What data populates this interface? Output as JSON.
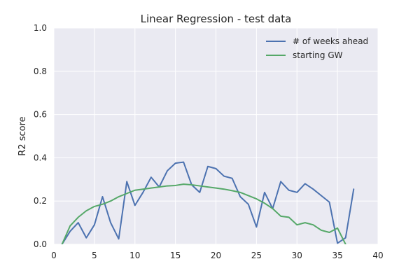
{
  "chart_data": {
    "type": "line",
    "title": "Linear Regression - test data",
    "xlabel": "",
    "ylabel": "R2 score",
    "xlim": [
      0,
      40
    ],
    "ylim": [
      0.0,
      1.0
    ],
    "xticks": [
      0,
      5,
      10,
      15,
      20,
      25,
      30,
      35,
      40
    ],
    "yticks": [
      0.0,
      0.2,
      0.4,
      0.6,
      0.8,
      1.0
    ],
    "xtick_labels": [
      "0",
      "5",
      "10",
      "15",
      "20",
      "25",
      "30",
      "35",
      "40"
    ],
    "ytick_labels": [
      "0.0",
      "0.2",
      "0.4",
      "0.6",
      "0.8",
      "1.0"
    ],
    "grid": true,
    "background": "#eaeaf2",
    "legend_position": "top-right",
    "series": [
      {
        "name": "# of weeks ahead",
        "color": "#4c72b0",
        "x": [
          1,
          2,
          3,
          4,
          5,
          6,
          7,
          8,
          9,
          10,
          11,
          12,
          13,
          14,
          15,
          16,
          17,
          18,
          19,
          20,
          21,
          22,
          23,
          24,
          25,
          26,
          27,
          28,
          29,
          30,
          31,
          32,
          33,
          34,
          35,
          36,
          37
        ],
        "y": [
          0.0,
          0.06,
          0.1,
          0.03,
          0.09,
          0.22,
          0.1,
          0.025,
          0.29,
          0.18,
          0.24,
          0.31,
          0.265,
          0.34,
          0.375,
          0.38,
          0.275,
          0.24,
          0.36,
          0.35,
          0.315,
          0.305,
          0.22,
          0.185,
          0.08,
          0.24,
          0.165,
          0.29,
          0.25,
          0.24,
          0.28,
          0.255,
          0.225,
          0.195,
          0.005,
          0.03,
          0.255
        ]
      },
      {
        "name": "starting GW",
        "color": "#55a868",
        "x": [
          1,
          2,
          3,
          4,
          5,
          6,
          7,
          8,
          9,
          10,
          11,
          12,
          13,
          14,
          15,
          16,
          17,
          18,
          19,
          20,
          21,
          22,
          23,
          24,
          25,
          26,
          27,
          28,
          29,
          30,
          31,
          32,
          33,
          34,
          35,
          36
        ],
        "y": [
          0.0,
          0.085,
          0.125,
          0.155,
          0.175,
          0.185,
          0.2,
          0.22,
          0.235,
          0.25,
          0.255,
          0.26,
          0.265,
          0.27,
          0.272,
          0.278,
          0.275,
          0.27,
          0.265,
          0.26,
          0.255,
          0.248,
          0.24,
          0.225,
          0.21,
          0.19,
          0.165,
          0.13,
          0.125,
          0.09,
          0.1,
          0.09,
          0.065,
          0.055,
          0.075,
          0.0
        ]
      }
    ]
  }
}
